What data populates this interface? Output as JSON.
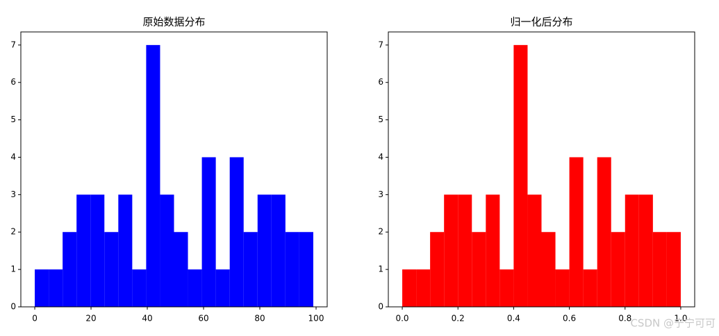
{
  "chart_data": [
    {
      "type": "histogram",
      "title": "原始数据分布",
      "color": "#0000ff",
      "bins": [
        0,
        4.95,
        9.9,
        14.85,
        19.8,
        24.75,
        29.7,
        34.65,
        39.6,
        44.55,
        49.5,
        54.45,
        59.4,
        64.35,
        69.3,
        74.25,
        79.2,
        84.15,
        89.1,
        94.05,
        99
      ],
      "values": [
        1,
        1,
        2,
        3,
        3,
        2,
        3,
        1,
        7,
        3,
        2,
        1,
        4,
        1,
        4,
        2,
        3,
        3,
        2,
        2
      ],
      "xlim": [
        -4.95,
        103.95
      ],
      "xticks": [
        0,
        20,
        40,
        60,
        80,
        100
      ],
      "ylim": [
        0,
        7.35
      ],
      "yticks": [
        0,
        1,
        2,
        3,
        4,
        5,
        6,
        7
      ]
    },
    {
      "type": "histogram",
      "title": "归一化后分布",
      "color": "#ff0000",
      "bins": [
        0,
        0.05,
        0.1,
        0.15,
        0.2,
        0.25,
        0.3,
        0.35,
        0.4,
        0.45,
        0.5,
        0.55,
        0.6,
        0.65,
        0.7,
        0.75,
        0.8,
        0.85,
        0.9,
        0.95,
        1.0
      ],
      "values": [
        1,
        1,
        2,
        3,
        3,
        2,
        3,
        1,
        7,
        3,
        2,
        1,
        4,
        1,
        4,
        2,
        3,
        3,
        2,
        2
      ],
      "xlim": [
        -0.05,
        1.05
      ],
      "xticks": [
        {
          "value": 0,
          "label": "0.0"
        },
        {
          "value": 0.2,
          "label": "0.2"
        },
        {
          "value": 0.4,
          "label": "0.4"
        },
        {
          "value": 0.6,
          "label": "0.6"
        },
        {
          "value": 0.8,
          "label": "0.8"
        },
        {
          "value": 1,
          "label": "1.0"
        }
      ],
      "ylim": [
        0,
        7.35
      ],
      "yticks": [
        0,
        1,
        2,
        3,
        4,
        5,
        6,
        7
      ]
    }
  ],
  "watermark": "CSDN @宁宁可可"
}
